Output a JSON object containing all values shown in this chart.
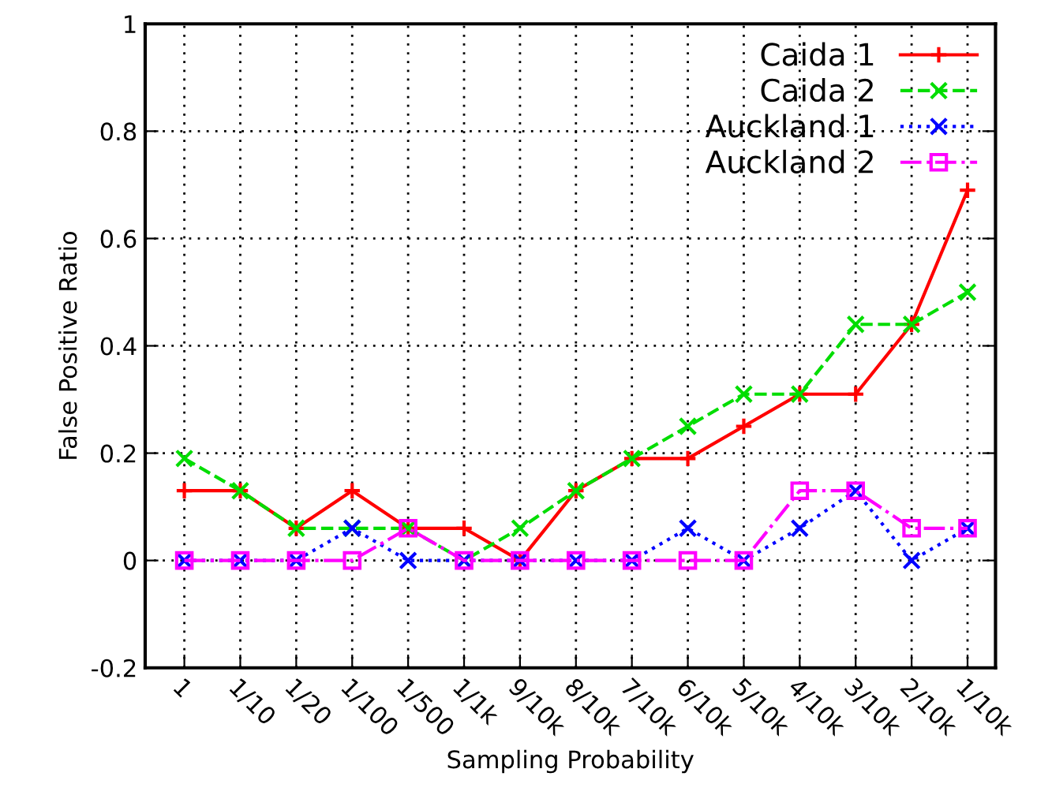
{
  "chart_data": {
    "type": "line",
    "xlabel": "Sampling Probability",
    "ylabel": "False Positive Ratio",
    "categories": [
      "1",
      "1/10",
      "1/20",
      "1/100",
      "1/500",
      "1/1k",
      "9/10k",
      "8/10k",
      "7/10k",
      "6/10k",
      "5/10k",
      "4/10k",
      "3/10k",
      "2/10k",
      "1/10k"
    ],
    "series": [
      {
        "name": "Caida 1",
        "color": "#ff0000",
        "marker": "plus",
        "line_style": "solid",
        "values": [
          0.13,
          0.13,
          0.06,
          0.13,
          0.06,
          0.06,
          0,
          0.13,
          0.19,
          0.19,
          0.25,
          0.31,
          0.31,
          0.44,
          0.69
        ]
      },
      {
        "name": "Caida 2",
        "color": "#00dd00",
        "marker": "cross",
        "line_style": "dashed",
        "values": [
          0.19,
          0.13,
          0.06,
          0.06,
          0.06,
          0,
          0.06,
          0.13,
          0.19,
          0.25,
          0.31,
          0.31,
          0.44,
          0.44,
          0.5
        ]
      },
      {
        "name": "Auckland 1",
        "color": "#0000ff",
        "marker": "cross",
        "line_style": "dotted",
        "values": [
          0,
          0,
          0,
          0.06,
          0,
          0,
          0,
          0,
          0,
          0.06,
          0,
          0.06,
          0.13,
          0,
          0.06
        ]
      },
      {
        "name": "Auckland 2",
        "color": "#ff00ff",
        "marker": "square",
        "line_style": "dashdot",
        "values": [
          0,
          0,
          0,
          0,
          0.06,
          0,
          0,
          0,
          0,
          0,
          0,
          0.13,
          0.13,
          0.06,
          0.06
        ]
      }
    ],
    "ylim": [
      -0.2,
      1
    ],
    "yticks": [
      -0.2,
      0,
      0.2,
      0.4,
      0.6,
      0.8,
      1
    ],
    "grid": true,
    "legend": "top right"
  }
}
